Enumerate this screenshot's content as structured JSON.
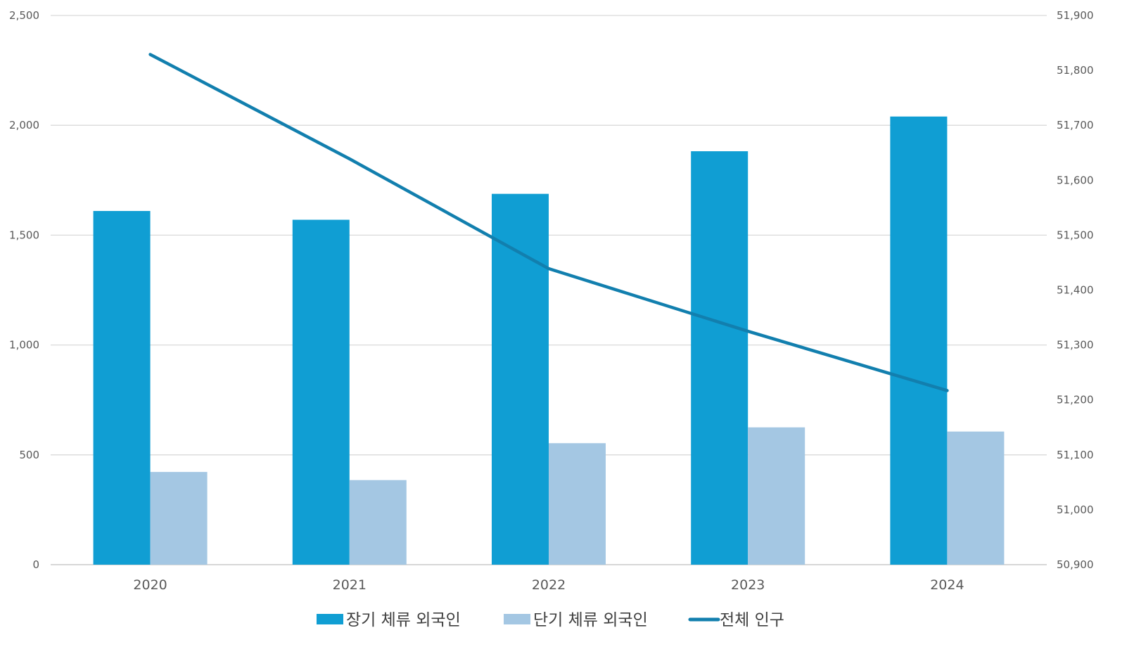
{
  "chart_data": {
    "type": "bar",
    "title": "",
    "xlabel": "",
    "ylabel": "",
    "y2label": "",
    "categories": [
      "2020",
      "2021",
      "2022",
      "2023",
      "2024"
    ],
    "series": [
      {
        "name": "장기 체류 외국인",
        "type": "bar",
        "axis": "left",
        "color": "#109ED3",
        "values": [
          1610,
          1570,
          1688,
          1882,
          2040
        ]
      },
      {
        "name": "단기 체류 외국인",
        "type": "bar",
        "axis": "left",
        "color": "#A4C7E3",
        "values": [
          422,
          385,
          553,
          625,
          606
        ]
      },
      {
        "name": "전체 인구",
        "type": "line",
        "axis": "right",
        "color": "#127FAE",
        "values": [
          51829,
          51639,
          51439,
          51325,
          51217
        ]
      }
    ],
    "ylim": [
      0,
      2500
    ],
    "yticks": [
      "0",
      "500",
      "1,000",
      "1,500",
      "2,000",
      "2,500"
    ],
    "y2lim": [
      50900,
      51900
    ],
    "y2ticks": [
      "50,900",
      "51,000",
      "51,100",
      "51,200",
      "51,300",
      "51,400",
      "51,500",
      "51,600",
      "51,700",
      "51,800",
      "51,900"
    ],
    "grid": true,
    "legend_position": "bottom"
  }
}
